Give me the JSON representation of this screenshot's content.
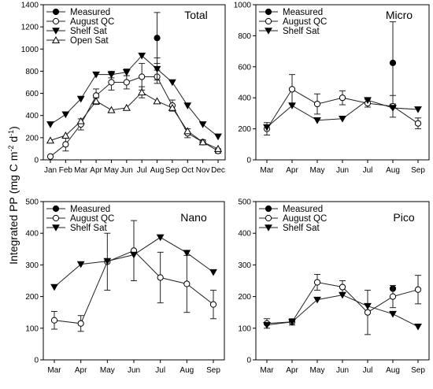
{
  "figure": {
    "ylabel_main": "Integrated PP",
    "ylabel_unit_open": "(mg C m",
    "ylabel_exp1": "-2",
    "ylabel_mid": " d",
    "ylabel_exp2": "-1",
    "ylabel_close": ")"
  },
  "chart_data": [
    {
      "type": "line",
      "title": "Total",
      "categories": [
        "Jan",
        "Feb",
        "Mar",
        "Apr",
        "May",
        "Jun",
        "Jul",
        "Aug",
        "Sep",
        "Oct",
        "Nov",
        "Dec"
      ],
      "ylim": [
        0,
        1400
      ],
      "yticks": [
        0,
        200,
        400,
        600,
        800,
        1000,
        1200,
        1400
      ],
      "legend_position": "top-left",
      "series": [
        {
          "name": "Measured",
          "marker": "filled-circle",
          "values": [
            null,
            null,
            null,
            null,
            null,
            null,
            null,
            1100,
            null,
            null,
            null,
            null
          ],
          "err": [
            null,
            null,
            null,
            null,
            null,
            null,
            null,
            230,
            null,
            null,
            null,
            null
          ]
        },
        {
          "name": "August QC",
          "marker": "open-circle",
          "values": [
            30,
            140,
            320,
            580,
            700,
            700,
            750,
            750,
            490,
            240,
            160,
            80
          ],
          "err": [
            0,
            60,
            50,
            60,
            70,
            60,
            120,
            60,
            50,
            40,
            20,
            20
          ]
        },
        {
          "name": "Shelf Sat",
          "marker": "filled-triangle-down",
          "values": [
            320,
            410,
            550,
            770,
            770,
            790,
            940,
            820,
            700,
            490,
            320,
            210
          ],
          "err": [
            0,
            0,
            0,
            0,
            30,
            30,
            0,
            100,
            0,
            0,
            0,
            0
          ]
        },
        {
          "name": "Open Sat",
          "marker": "open-triangle-up",
          "values": [
            175,
            220,
            350,
            530,
            450,
            470,
            610,
            530,
            470,
            260,
            160,
            100
          ],
          "err": [
            0,
            0,
            0,
            30,
            0,
            0,
            50,
            0,
            0,
            0,
            0,
            0
          ]
        }
      ]
    },
    {
      "type": "line",
      "title": "Micro",
      "categories": [
        "Mar",
        "Apr",
        "May",
        "Jun",
        "Jul",
        "Aug",
        "Sep"
      ],
      "ylim": [
        0,
        1000
      ],
      "yticks": [
        0,
        200,
        400,
        600,
        800,
        1000
      ],
      "legend_position": "top-left",
      "series": [
        {
          "name": "Measured",
          "marker": "filled-circle",
          "values": [
            null,
            null,
            null,
            null,
            null,
            625,
            null
          ],
          "err": [
            null,
            null,
            null,
            null,
            null,
            265,
            null
          ]
        },
        {
          "name": "August QC",
          "marker": "open-circle",
          "values": [
            200,
            455,
            360,
            400,
            365,
            345,
            235
          ],
          "err": [
            40,
            95,
            65,
            45,
            25,
            70,
            35
          ]
        },
        {
          "name": "Shelf Sat",
          "marker": "filled-triangle-down",
          "values": [
            210,
            350,
            255,
            265,
            385,
            335,
            325
          ],
          "err": [
            0,
            0,
            0,
            0,
            0,
            0,
            0
          ]
        }
      ]
    },
    {
      "type": "line",
      "title": "Nano",
      "categories": [
        "Mar",
        "Apr",
        "May",
        "Jun",
        "Jul",
        "Aug",
        "Sep"
      ],
      "ylim": [
        0,
        500
      ],
      "yticks": [
        0,
        100,
        200,
        300,
        400,
        500
      ],
      "legend_position": "top-left",
      "series": [
        {
          "name": "Measured",
          "marker": "filled-circle",
          "values": [
            null,
            null,
            null,
            null,
            null,
            null,
            null
          ],
          "err": [
            null,
            null,
            null,
            null,
            null,
            null,
            null
          ]
        },
        {
          "name": "August QC",
          "marker": "open-circle",
          "values": [
            125,
            115,
            310,
            345,
            260,
            240,
            175
          ],
          "err": [
            28,
            25,
            90,
            95,
            80,
            90,
            45
          ]
        },
        {
          "name": "Shelf Sat",
          "marker": "filled-triangle-down",
          "values": [
            230,
            302,
            312,
            332,
            387,
            338,
            277
          ],
          "err": [
            0,
            0,
            0,
            0,
            0,
            0,
            0
          ]
        }
      ]
    },
    {
      "type": "line",
      "title": "Pico",
      "categories": [
        "Mar",
        "Apr",
        "May",
        "Jun",
        "Jul",
        "Aug",
        "Sep"
      ],
      "ylim": [
        0,
        500
      ],
      "yticks": [
        0,
        100,
        200,
        300,
        400,
        500
      ],
      "legend_position": "top-left",
      "series": [
        {
          "name": "Measured",
          "marker": "filled-circle",
          "values": [
            null,
            null,
            null,
            null,
            null,
            225,
            null
          ],
          "err": [
            null,
            null,
            null,
            null,
            null,
            0,
            null
          ]
        },
        {
          "name": "August QC",
          "marker": "open-circle",
          "values": [
            115,
            120,
            245,
            230,
            150,
            200,
            222
          ],
          "err": [
            15,
            10,
            25,
            20,
            70,
            35,
            45
          ]
        },
        {
          "name": "Shelf Sat",
          "marker": "filled-triangle-down",
          "values": [
            110,
            120,
            190,
            205,
            170,
            145,
            105
          ],
          "err": [
            0,
            0,
            0,
            0,
            0,
            0,
            0
          ]
        }
      ]
    }
  ]
}
